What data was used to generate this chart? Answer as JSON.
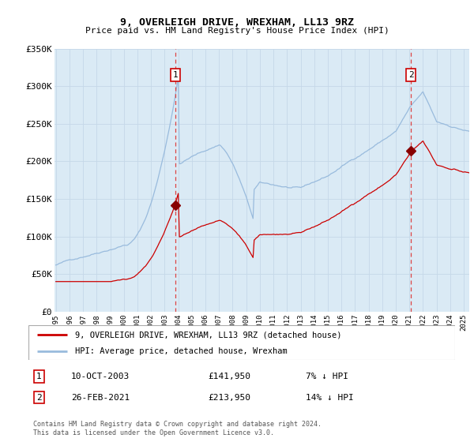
{
  "title": "9, OVERLEIGH DRIVE, WREXHAM, LL13 9RZ",
  "subtitle": "Price paid vs. HM Land Registry's House Price Index (HPI)",
  "ylim": [
    0,
    350000
  ],
  "yticks": [
    0,
    50000,
    100000,
    150000,
    200000,
    250000,
    300000,
    350000
  ],
  "ytick_labels": [
    "£0",
    "£50K",
    "£100K",
    "£150K",
    "£200K",
    "£250K",
    "£300K",
    "£350K"
  ],
  "xlim_start": 1994.9,
  "xlim_end": 2025.4,
  "plot_bg_color": "#daeaf5",
  "grid_color": "#c8daea",
  "line_red_color": "#cc0000",
  "line_blue_color": "#99bbdd",
  "marker1_x": 2003.78,
  "marker1_y": 141950,
  "marker2_x": 2021.12,
  "marker2_y": 213950,
  "marker1_label": "10-OCT-2003",
  "marker1_price": "£141,950",
  "marker1_hpi": "7% ↓ HPI",
  "marker2_label": "26-FEB-2021",
  "marker2_price": "£213,950",
  "marker2_hpi": "14% ↓ HPI",
  "legend1": "9, OVERLEIGH DRIVE, WREXHAM, LL13 9RZ (detached house)",
  "legend2": "HPI: Average price, detached house, Wrexham",
  "footnote": "Contains HM Land Registry data © Crown copyright and database right 2024.\nThis data is licensed under the Open Government Licence v3.0."
}
